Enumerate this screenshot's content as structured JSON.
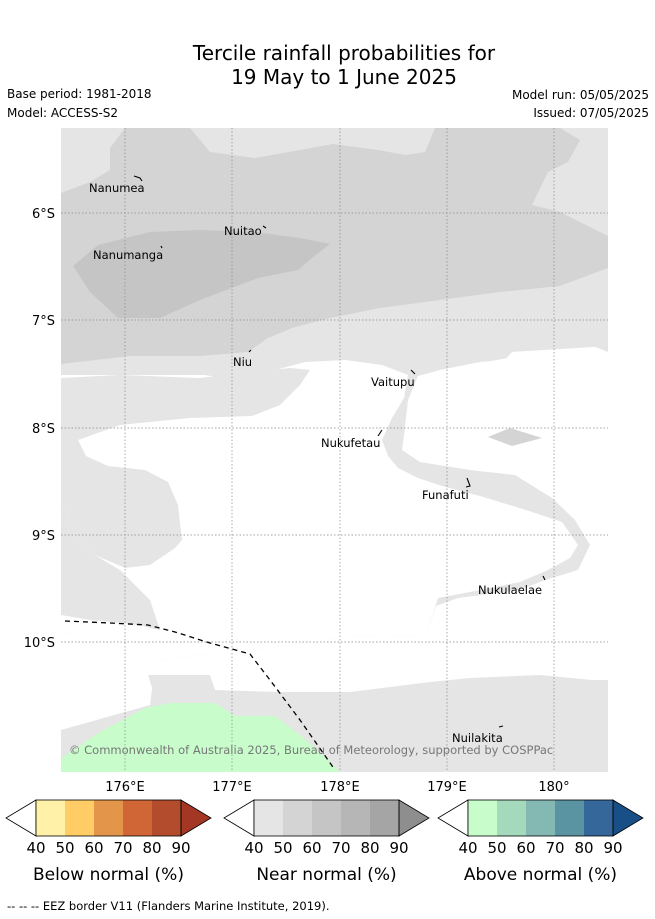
{
  "header": {
    "title_line1": "Tercile rainfall probabilities for",
    "title_line2": "19 May to 1 June 2025",
    "base_period": "Base period: 1981-2018",
    "model": "Model: ACCESS-S2",
    "model_run": "Model run: 05/05/2025",
    "issued": "Issued: 07/05/2025"
  },
  "map": {
    "lat_labels": [
      "6°S",
      "7°S",
      "8°S",
      "9°S",
      "10°S"
    ],
    "lon_labels": [
      "176°E",
      "177°E",
      "178°E",
      "179°E",
      "180°"
    ],
    "islands": [
      "Nanumea",
      "Nuitao",
      "Nanumanga",
      "Niu",
      "Vaitupu",
      "Nukufetau",
      "Funafuti",
      "Nukulaelae",
      "Nuilakita"
    ],
    "copyright": "© Commonwealth of Australia 2025, Bureau of Meteorology, supported by COSPPac"
  },
  "legends": [
    {
      "title": "Below normal (%)",
      "ticks": [
        "40",
        "50",
        "60",
        "70",
        "80",
        "90"
      ],
      "colors": [
        "#ffffff",
        "#fff2a8",
        "#ffcc66",
        "#e3954a",
        "#d06535",
        "#b24c2c",
        "#a33723"
      ]
    },
    {
      "title": "Near normal (%)",
      "ticks": [
        "40",
        "50",
        "60",
        "70",
        "80",
        "90"
      ],
      "colors": [
        "#ffffff",
        "#e5e5e5",
        "#d4d4d4",
        "#c5c5c5",
        "#b6b6b6",
        "#a5a5a5",
        "#8e8e8e"
      ]
    },
    {
      "title": "Above normal (%)",
      "ticks": [
        "40",
        "50",
        "60",
        "70",
        "80",
        "90"
      ],
      "colors": [
        "#ffffff",
        "#c8fccb",
        "#a4d9bc",
        "#84b9b3",
        "#5a93a2",
        "#35679b",
        "#184f86"
      ]
    }
  ],
  "footer": {
    "eez_note": "--  --  -- EEZ border V11 (Flanders Marine Institute, 2019)."
  }
}
